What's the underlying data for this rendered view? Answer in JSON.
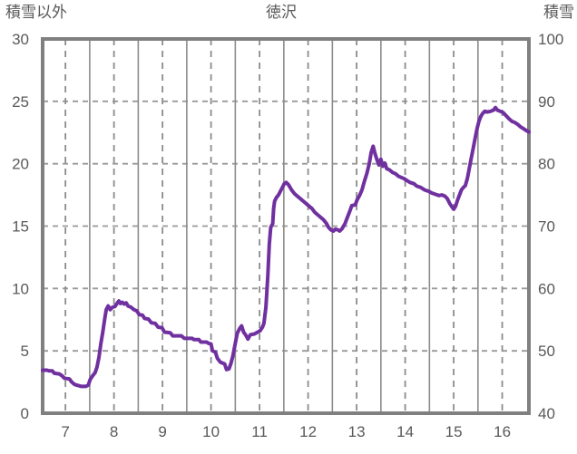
{
  "header": {
    "left_axis_title": "積雪以外",
    "title": "徳沢",
    "right_axis_title": "積雪"
  },
  "colors": {
    "line": "#7030A0",
    "frame": "#808080",
    "grid_solid": "#8C8C8C",
    "grid_dashed": "#999999",
    "text": "#595959",
    "background": "#FFFFFF"
  },
  "chart_data": {
    "type": "line",
    "title": "徳沢",
    "left_axis": {
      "title": "積雪以外",
      "min": 0,
      "max": 30,
      "ticks": [
        30,
        25,
        20,
        15,
        10,
        5,
        0
      ]
    },
    "right_axis": {
      "title": "積雪",
      "min": 40,
      "max": 100,
      "ticks": [
        100,
        90,
        80,
        70,
        60,
        50,
        40
      ]
    },
    "x_axis": {
      "range": [
        6.53,
        16.55
      ],
      "tick_positions": [
        7,
        8,
        9,
        10,
        11,
        12,
        13,
        14,
        15,
        16
      ],
      "tick_labels": [
        "7",
        "8",
        "9",
        "10",
        "11",
        "12",
        "13",
        "14",
        "15",
        "16"
      ],
      "solid_gridlines": [
        7.5,
        8.5,
        9.5,
        10.5,
        11.5,
        12.5,
        13.5,
        14.5,
        15.5
      ],
      "dashed_gridlines": [
        7,
        8,
        9,
        10,
        11,
        12,
        13,
        14,
        15,
        16
      ]
    },
    "hgrid_values_left_scale": [
      5,
      10,
      15,
      20,
      25
    ],
    "legend_position": "none",
    "grid": true,
    "series": [
      {
        "name": "徳沢",
        "axis": "left",
        "color": "#7030A0",
        "points": [
          [
            6.53,
            3.45
          ],
          [
            6.62,
            3.45
          ],
          [
            6.66,
            3.4
          ],
          [
            6.73,
            3.4
          ],
          [
            6.77,
            3.2
          ],
          [
            6.87,
            3.15
          ],
          [
            6.93,
            3.0
          ],
          [
            6.98,
            2.8
          ],
          [
            7.08,
            2.75
          ],
          [
            7.13,
            2.5
          ],
          [
            7.19,
            2.3
          ],
          [
            7.28,
            2.2
          ],
          [
            7.33,
            2.15
          ],
          [
            7.42,
            2.15
          ],
          [
            7.47,
            2.25
          ],
          [
            7.51,
            2.7
          ],
          [
            7.56,
            3.0
          ],
          [
            7.61,
            3.25
          ],
          [
            7.65,
            3.7
          ],
          [
            7.69,
            4.5
          ],
          [
            7.73,
            5.6
          ],
          [
            7.77,
            6.5
          ],
          [
            7.81,
            7.6
          ],
          [
            7.84,
            8.3
          ],
          [
            7.88,
            8.6
          ],
          [
            7.92,
            8.3
          ],
          [
            7.97,
            8.5
          ],
          [
            8.02,
            8.55
          ],
          [
            8.07,
            8.85
          ],
          [
            8.1,
            9.0
          ],
          [
            8.13,
            8.8
          ],
          [
            8.17,
            8.9
          ],
          [
            8.21,
            8.75
          ],
          [
            8.25,
            8.85
          ],
          [
            8.29,
            8.6
          ],
          [
            8.35,
            8.5
          ],
          [
            8.41,
            8.3
          ],
          [
            8.47,
            8.2
          ],
          [
            8.52,
            7.9
          ],
          [
            8.59,
            7.85
          ],
          [
            8.63,
            7.6
          ],
          [
            8.71,
            7.55
          ],
          [
            8.77,
            7.25
          ],
          [
            8.85,
            7.2
          ],
          [
            8.91,
            6.9
          ],
          [
            8.99,
            6.85
          ],
          [
            9.04,
            6.5
          ],
          [
            9.16,
            6.45
          ],
          [
            9.21,
            6.2
          ],
          [
            9.39,
            6.2
          ],
          [
            9.45,
            6.0
          ],
          [
            9.61,
            6.0
          ],
          [
            9.65,
            5.9
          ],
          [
            9.75,
            5.9
          ],
          [
            9.79,
            5.7
          ],
          [
            9.91,
            5.7
          ],
          [
            9.95,
            5.6
          ],
          [
            10.0,
            5.55
          ],
          [
            10.03,
            5.0
          ],
          [
            10.09,
            4.9
          ],
          [
            10.13,
            4.4
          ],
          [
            10.19,
            4.1
          ],
          [
            10.28,
            3.95
          ],
          [
            10.32,
            3.5
          ],
          [
            10.37,
            3.55
          ],
          [
            10.41,
            4.0
          ],
          [
            10.45,
            4.6
          ],
          [
            10.49,
            5.4
          ],
          [
            10.54,
            6.4
          ],
          [
            10.59,
            6.8
          ],
          [
            10.63,
            7.0
          ],
          [
            10.67,
            6.5
          ],
          [
            10.71,
            6.3
          ],
          [
            10.76,
            5.95
          ],
          [
            10.81,
            6.3
          ],
          [
            10.89,
            6.35
          ],
          [
            10.96,
            6.5
          ],
          [
            11.01,
            6.6
          ],
          [
            11.06,
            6.9
          ],
          [
            11.09,
            7.2
          ],
          [
            11.13,
            8.5
          ],
          [
            11.17,
            11.0
          ],
          [
            11.2,
            13.5
          ],
          [
            11.23,
            14.9
          ],
          [
            11.27,
            15.2
          ],
          [
            11.29,
            16.4
          ],
          [
            11.31,
            17.0
          ],
          [
            11.35,
            17.3
          ],
          [
            11.39,
            17.5
          ],
          [
            11.43,
            17.8
          ],
          [
            11.47,
            18.1
          ],
          [
            11.51,
            18.4
          ],
          [
            11.55,
            18.5
          ],
          [
            11.6,
            18.3
          ],
          [
            11.66,
            17.9
          ],
          [
            11.72,
            17.6
          ],
          [
            11.78,
            17.4
          ],
          [
            11.84,
            17.2
          ],
          [
            11.9,
            17.0
          ],
          [
            11.96,
            16.8
          ],
          [
            12.02,
            16.6
          ],
          [
            12.08,
            16.4
          ],
          [
            12.14,
            16.1
          ],
          [
            12.2,
            15.9
          ],
          [
            12.26,
            15.7
          ],
          [
            12.32,
            15.5
          ],
          [
            12.38,
            15.2
          ],
          [
            12.42,
            14.9
          ],
          [
            12.47,
            14.7
          ],
          [
            12.52,
            14.6
          ],
          [
            12.56,
            14.75
          ],
          [
            12.61,
            14.7
          ],
          [
            12.65,
            14.6
          ],
          [
            12.7,
            14.8
          ],
          [
            12.76,
            15.2
          ],
          [
            12.81,
            15.7
          ],
          [
            12.86,
            16.2
          ],
          [
            12.9,
            16.65
          ],
          [
            12.97,
            16.7
          ],
          [
            13.01,
            17.1
          ],
          [
            13.06,
            17.45
          ],
          [
            13.11,
            17.9
          ],
          [
            13.16,
            18.6
          ],
          [
            13.21,
            19.2
          ],
          [
            13.26,
            20.0
          ],
          [
            13.3,
            20.9
          ],
          [
            13.34,
            21.4
          ],
          [
            13.38,
            20.8
          ],
          [
            13.42,
            20.3
          ],
          [
            13.46,
            19.9
          ],
          [
            13.5,
            20.35
          ],
          [
            13.54,
            19.8
          ],
          [
            13.58,
            20.05
          ],
          [
            13.62,
            19.6
          ],
          [
            13.68,
            19.5
          ],
          [
            13.74,
            19.3
          ],
          [
            13.8,
            19.2
          ],
          [
            13.86,
            19.0
          ],
          [
            13.92,
            18.9
          ],
          [
            13.98,
            18.8
          ],
          [
            14.04,
            18.65
          ],
          [
            14.1,
            18.5
          ],
          [
            14.18,
            18.4
          ],
          [
            14.24,
            18.2
          ],
          [
            14.32,
            18.1
          ],
          [
            14.4,
            17.9
          ],
          [
            14.48,
            17.8
          ],
          [
            14.55,
            17.65
          ],
          [
            14.62,
            17.55
          ],
          [
            14.7,
            17.45
          ],
          [
            14.76,
            17.5
          ],
          [
            14.82,
            17.4
          ],
          [
            14.87,
            17.2
          ],
          [
            14.92,
            16.8
          ],
          [
            14.97,
            16.5
          ],
          [
            15.0,
            16.35
          ],
          [
            15.04,
            16.6
          ],
          [
            15.08,
            17.1
          ],
          [
            15.12,
            17.5
          ],
          [
            15.16,
            17.9
          ],
          [
            15.2,
            18.1
          ],
          [
            15.24,
            18.25
          ],
          [
            15.28,
            18.8
          ],
          [
            15.32,
            19.6
          ],
          [
            15.36,
            20.4
          ],
          [
            15.4,
            21.2
          ],
          [
            15.44,
            22.0
          ],
          [
            15.48,
            22.8
          ],
          [
            15.52,
            23.4
          ],
          [
            15.56,
            23.8
          ],
          [
            15.6,
            24.05
          ],
          [
            15.64,
            24.2
          ],
          [
            15.7,
            24.15
          ],
          [
            15.76,
            24.2
          ],
          [
            15.82,
            24.3
          ],
          [
            15.86,
            24.5
          ],
          [
            15.9,
            24.3
          ],
          [
            15.96,
            24.2
          ],
          [
            16.02,
            24.1
          ],
          [
            16.08,
            23.85
          ],
          [
            16.14,
            23.6
          ],
          [
            16.2,
            23.4
          ],
          [
            16.26,
            23.3
          ],
          [
            16.32,
            23.15
          ],
          [
            16.38,
            22.95
          ],
          [
            16.44,
            22.8
          ],
          [
            16.5,
            22.65
          ],
          [
            16.55,
            22.55
          ]
        ]
      }
    ]
  }
}
